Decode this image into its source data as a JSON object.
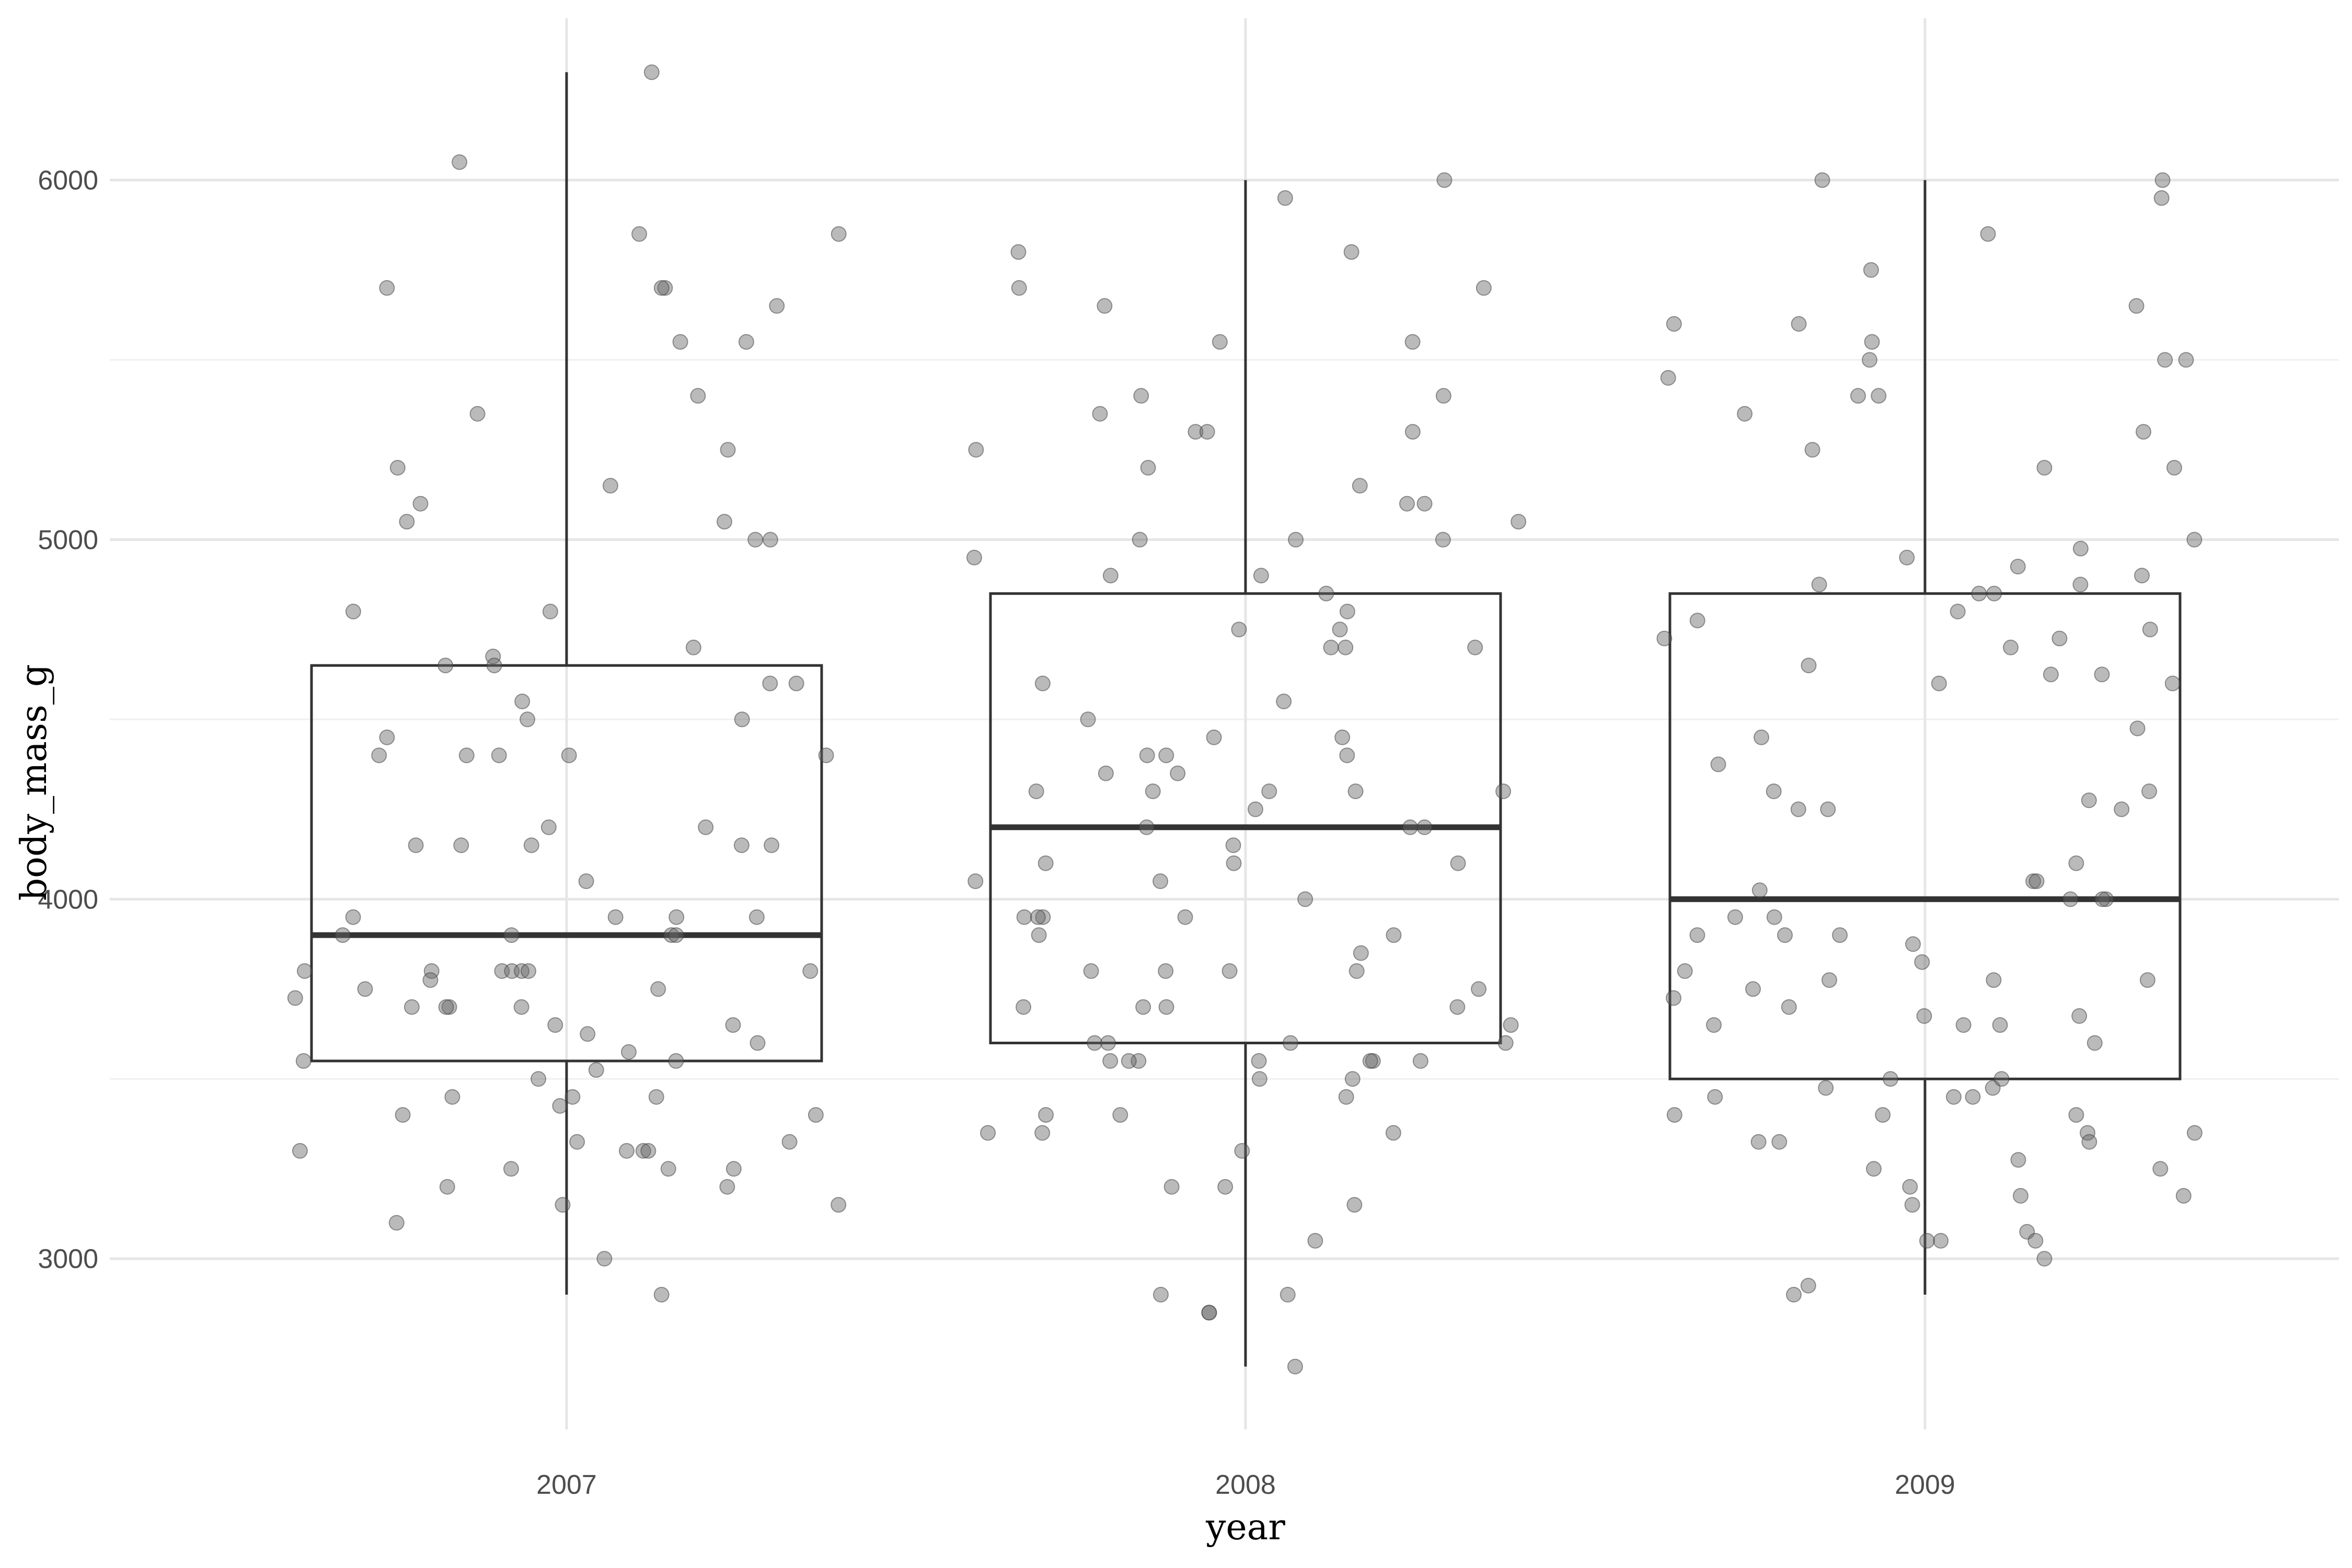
{
  "chart_data": {
    "type": "box",
    "xlabel": "year",
    "ylabel": "body_mass_g",
    "categories": [
      "2007",
      "2008",
      "2009"
    ],
    "ylim": [
      2525,
      6450
    ],
    "y_ticks": [
      3000,
      4000,
      5000,
      6000
    ],
    "y_tick_labels": [
      "3000",
      "4000",
      "5000",
      "6000"
    ],
    "grid": true,
    "legend": "none",
    "colors": {
      "box_stroke": "#333333",
      "points": "#666666",
      "grid": "#e6e6e6"
    },
    "boxes": [
      {
        "category": "2007",
        "lower_whisker": 2900,
        "q1": 3550,
        "median": 3900,
        "q3": 4650,
        "upper_whisker": 6300
      },
      {
        "category": "2008",
        "lower_whisker": 2700,
        "q1": 3600,
        "median": 4200,
        "q3": 4850,
        "upper_whisker": 6000
      },
      {
        "category": "2009",
        "lower_whisker": 2900,
        "q1": 3500,
        "median": 4000,
        "q3": 4850,
        "upper_whisker": 6000
      }
    ],
    "points": [
      {
        "category": "2007",
        "values": [
          6300,
          6050,
          5850,
          5850,
          5700,
          5700,
          5700,
          5650,
          5550,
          5550,
          5400,
          5350,
          5250,
          5200,
          5150,
          5100,
          5050,
          5050,
          5000,
          5000,
          4800,
          4800,
          4700,
          4675,
          4650,
          4650,
          4600,
          4600,
          4550,
          4500,
          4500,
          4450,
          4400,
          4400,
          4400,
          4400,
          4400,
          4200,
          4200,
          4150,
          4150,
          4150,
          4150,
          4150,
          4050,
          3950,
          3950,
          3950,
          3950,
          3900,
          3900,
          3900,
          3900,
          3800,
          3800,
          3800,
          3800,
          3800,
          3800,
          3800,
          3775,
          3750,
          3750,
          3725,
          3700,
          3700,
          3700,
          3700,
          3650,
          3650,
          3625,
          3600,
          3575,
          3550,
          3550,
          3525,
          3500,
          3450,
          3450,
          3450,
          3425,
          3400,
          3400,
          3325,
          3325,
          3300,
          3300,
          3300,
          3300,
          3250,
          3250,
          3250,
          3200,
          3200,
          3150,
          3150,
          3100,
          3000,
          2900
        ]
      },
      {
        "category": "2008",
        "values": [
          6000,
          5950,
          5800,
          5800,
          5700,
          5700,
          5650,
          5550,
          5550,
          5400,
          5400,
          5350,
          5300,
          5300,
          5300,
          5250,
          5200,
          5150,
          5100,
          5100,
          5050,
          5000,
          5000,
          5000,
          4950,
          4900,
          4900,
          4850,
          4800,
          4750,
          4750,
          4700,
          4700,
          4700,
          4600,
          4550,
          4500,
          4450,
          4450,
          4400,
          4400,
          4400,
          4350,
          4350,
          4300,
          4300,
          4300,
          4300,
          4300,
          4250,
          4200,
          4200,
          4200,
          4150,
          4100,
          4100,
          4100,
          4050,
          4050,
          4000,
          3950,
          3950,
          3950,
          3950,
          3900,
          3900,
          3850,
          3800,
          3800,
          3800,
          3800,
          3750,
          3700,
          3700,
          3700,
          3700,
          3650,
          3600,
          3600,
          3600,
          3600,
          3550,
          3550,
          3550,
          3550,
          3550,
          3550,
          3550,
          3500,
          3500,
          3450,
          3400,
          3400,
          3350,
          3350,
          3350,
          3300,
          3200,
          3200,
          3150,
          3050,
          2900,
          2900,
          2850,
          2850,
          2700
        ]
      },
      {
        "category": "2009",
        "values": [
          6000,
          6000,
          5950,
          5850,
          5750,
          5650,
          5600,
          5600,
          5550,
          5500,
          5500,
          5500,
          5450,
          5400,
          5400,
          5350,
          5300,
          5250,
          5200,
          5200,
          5000,
          4975,
          4950,
          4925,
          4900,
          4875,
          4875,
          4850,
          4850,
          4800,
          4775,
          4750,
          4725,
          4725,
          4700,
          4650,
          4625,
          4625,
          4600,
          4600,
          4475,
          4450,
          4375,
          4300,
          4300,
          4275,
          4250,
          4250,
          4250,
          4100,
          4050,
          4050,
          4025,
          4000,
          4000,
          4000,
          3950,
          3950,
          3900,
          3900,
          3900,
          3875,
          3825,
          3800,
          3775,
          3775,
          3775,
          3750,
          3725,
          3700,
          3675,
          3675,
          3650,
          3650,
          3650,
          3600,
          3500,
          3500,
          3475,
          3475,
          3450,
          3450,
          3450,
          3400,
          3400,
          3400,
          3350,
          3350,
          3325,
          3325,
          3325,
          3275,
          3250,
          3250,
          3200,
          3175,
          3175,
          3150,
          3075,
          3050,
          3050,
          3050,
          3000,
          2925,
          2900
        ]
      }
    ]
  }
}
